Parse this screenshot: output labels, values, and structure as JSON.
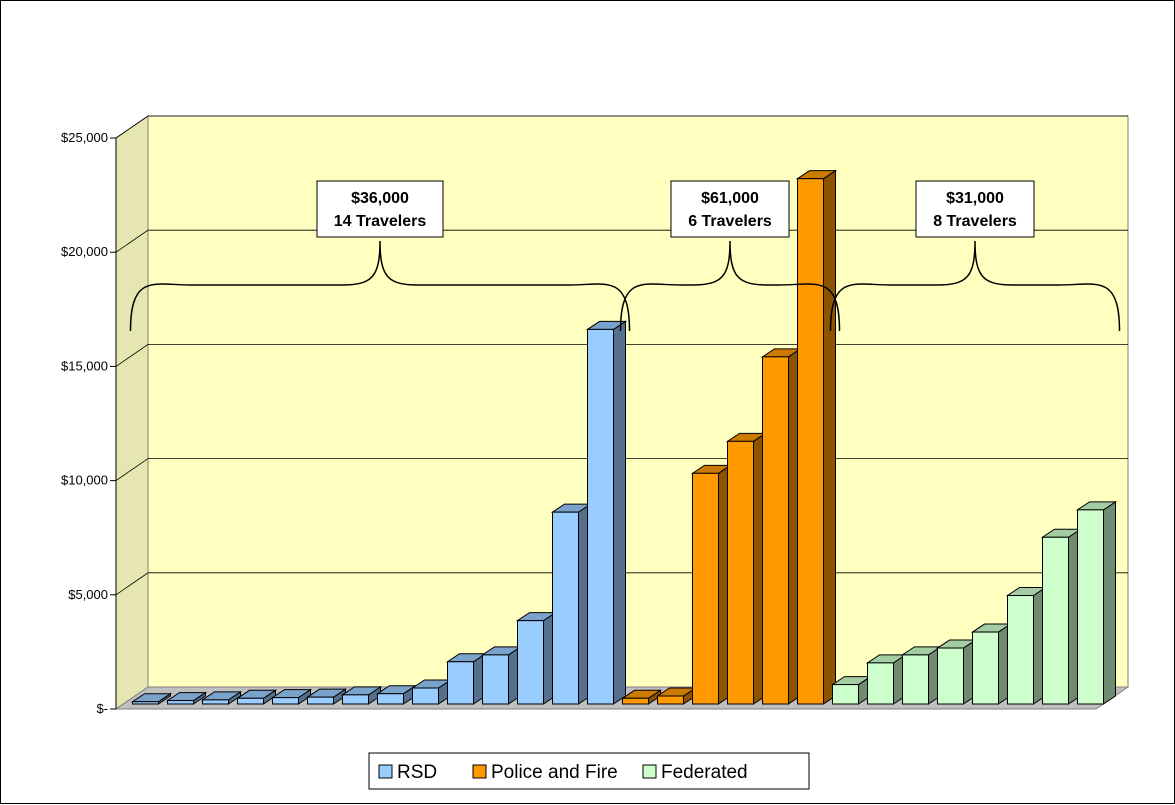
{
  "chart_data": {
    "type": "bar",
    "title": "",
    "xlabel": "",
    "ylabel": "",
    "ylim": [
      0,
      25000
    ],
    "yticks": [
      {
        "value": 0,
        "label": "$-"
      },
      {
        "value": 5000,
        "label": "$5,000"
      },
      {
        "value": 10000,
        "label": "$10,000"
      },
      {
        "value": 15000,
        "label": "$15,000"
      },
      {
        "value": 20000,
        "label": "$20,000"
      },
      {
        "value": 25000,
        "label": "$25,000"
      }
    ],
    "grid": true,
    "legend_position": "bottom",
    "series": [
      {
        "name": "RSD",
        "color": "#99ccff",
        "values": [
          100,
          150,
          180,
          250,
          280,
          300,
          400,
          450,
          700,
          1850,
          2150,
          3650,
          8400,
          16400
        ]
      },
      {
        "name": "Police and Fire",
        "color": "#ff9900",
        "values": [
          250,
          350,
          10100,
          11500,
          15200,
          23000
        ]
      },
      {
        "name": "Federated",
        "color": "#ccffcc",
        "values": [
          850,
          1800,
          2150,
          2450,
          3150,
          4750,
          7300,
          8500
        ]
      }
    ],
    "annotations": [
      {
        "series": "RSD",
        "amount": "$36,000",
        "travelers": "14 Travelers"
      },
      {
        "series": "Police and Fire",
        "amount": "$61,000",
        "travelers": "6 Travelers"
      },
      {
        "series": "Federated",
        "amount": "$31,000",
        "travelers": "8 Travelers"
      }
    ]
  }
}
